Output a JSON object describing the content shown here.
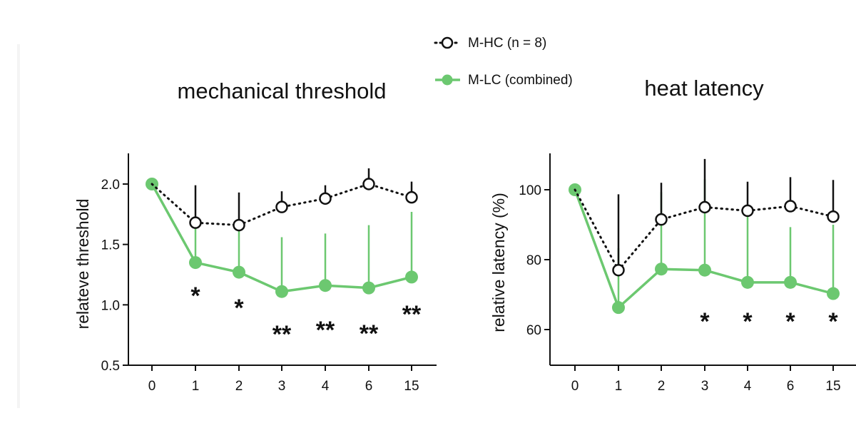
{
  "legend": [
    {
      "label": "M-HC (n = 8)",
      "style": "dotted-open",
      "color": "#111111"
    },
    {
      "label": "M-LC (combined)",
      "style": "solid-filled",
      "color": "#6cc870"
    }
  ],
  "colors": {
    "green": "#6cc870",
    "black": "#111111"
  },
  "chart_data": [
    {
      "type": "line",
      "title": "mechanical threshold",
      "xlabel": "",
      "ylabel": "relateve threshold",
      "categories": [
        "0",
        "1",
        "2",
        "3",
        "4",
        "6",
        "15"
      ],
      "ylim": [
        0.5,
        2.25
      ],
      "yticks": [
        "0.5",
        "1.0",
        "1.5",
        "2.0"
      ],
      "series": [
        {
          "name": "M-HC (n = 8)",
          "values": [
            2.0,
            1.68,
            1.66,
            1.81,
            1.88,
            2.0,
            1.89
          ],
          "err_up": [
            0,
            0.31,
            0.27,
            0.13,
            0.11,
            0.13,
            0.13
          ]
        },
        {
          "name": "M-LC (combined)",
          "values": [
            2.0,
            1.35,
            1.27,
            1.11,
            1.16,
            1.14,
            1.23
          ],
          "err_up": [
            0,
            0.33,
            0.4,
            0.45,
            0.43,
            0.52,
            0.54
          ]
        }
      ],
      "significance": [
        "",
        "*",
        "*",
        "**",
        "**",
        "**",
        "**"
      ]
    },
    {
      "type": "line",
      "title": "heat latency",
      "xlabel": "",
      "ylabel": "relative latency (%)",
      "categories": [
        "0",
        "1",
        "2",
        "3",
        "4",
        "6",
        "15"
      ],
      "ylim": [
        50,
        110
      ],
      "yticks": [
        "60",
        "80",
        "100"
      ],
      "series": [
        {
          "name": "M-HC (n = 8)",
          "values": [
            100,
            77,
            91.5,
            95,
            94,
            95.3,
            92.3
          ],
          "err_up": [
            0,
            21.7,
            10.5,
            13.8,
            8.3,
            8.3,
            10.5
          ]
        },
        {
          "name": "M-LC (combined)",
          "values": [
            100,
            66.3,
            77.3,
            77,
            73.5,
            73.5,
            70.3
          ],
          "err_up": [
            0,
            17,
            22,
            26,
            19,
            15.8,
            19.7
          ]
        }
      ],
      "significance": [
        "",
        "",
        "",
        "*",
        "*",
        "*",
        "*"
      ]
    }
  ]
}
